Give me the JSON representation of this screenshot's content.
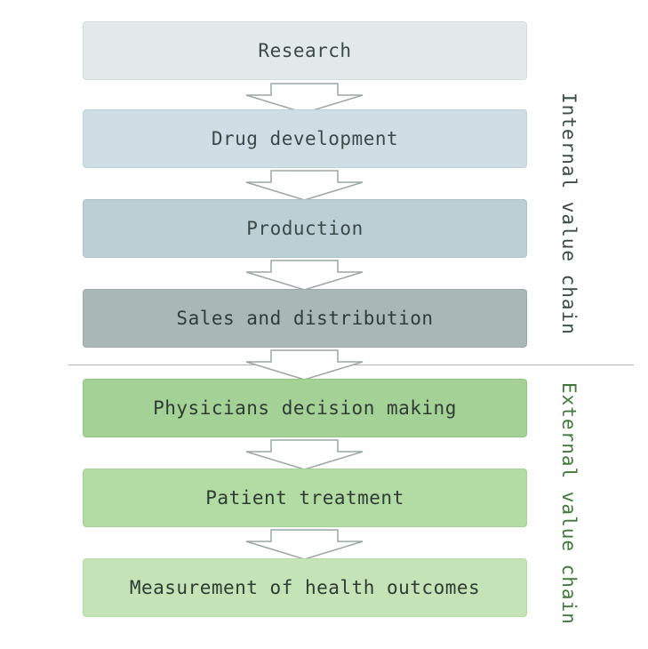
{
  "steps": [
    {
      "label": "Research",
      "fill": "#e3e9ea",
      "border": "#d2dbdd",
      "text": "#3b4a48"
    },
    {
      "label": "Drug development",
      "fill": "#cedee4",
      "border": "#bfd1d8",
      "text": "#3b4a48"
    },
    {
      "label": "Production",
      "fill": "#bccfd5",
      "border": "#adc3ca",
      "text": "#3b4a48"
    },
    {
      "label": "Sales and distribution",
      "fill": "#a9b8b7",
      "border": "#99aaa9",
      "text": "#2f3c3a"
    },
    {
      "label": "Physicians decision making",
      "fill": "#a4d196",
      "border": "#94c585",
      "text": "#2f3c34"
    },
    {
      "label": "Patient treatment",
      "fill": "#b3dca4",
      "border": "#a4d196",
      "text": "#2f3c34"
    },
    {
      "label": "Measurement of health outcomes",
      "fill": "#c4e3b6",
      "border": "#b3dca4",
      "text": "#2f3c34"
    }
  ],
  "side_labels": {
    "internal": "Internal value chain",
    "external": "External value chain"
  },
  "arrow_colors": {
    "stroke": "#9aa5a4",
    "fill": "#ffffff"
  }
}
